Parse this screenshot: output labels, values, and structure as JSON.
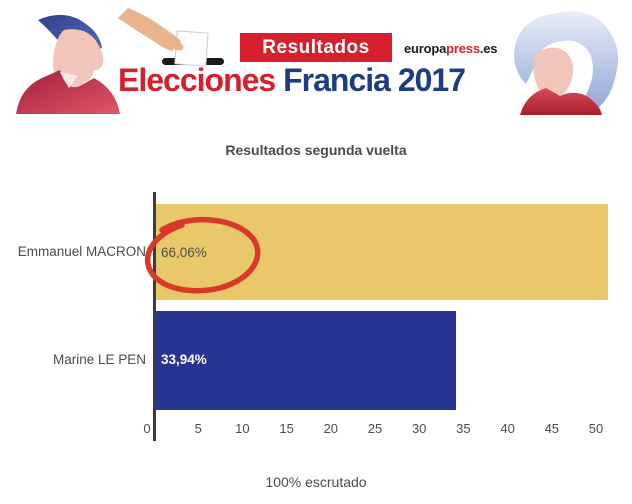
{
  "header": {
    "badge_label": "Resultados",
    "logo": {
      "part1": "europa",
      "part2": "press",
      "part3": ".es"
    },
    "title": {
      "part1": "Elecciones",
      "part2": "Francia 2017"
    },
    "colors": {
      "badge_red": "#d7202e",
      "title_red": "#d7202e",
      "title_navy": "#1d3d80"
    },
    "photos": {
      "left": "Emmanuel Macron portrait",
      "right": "Marine Le Pen portrait"
    }
  },
  "chart_data": {
    "type": "bar",
    "orientation": "horizontal",
    "title": "Resultados segunda vuelta",
    "categories": [
      "Emmanuel MACRON",
      "Marine LE PEN"
    ],
    "values": [
      66.06,
      33.94
    ],
    "value_labels": [
      "66,06%",
      "33,94%"
    ],
    "bar_colors": [
      "#e9c869",
      "#283593"
    ],
    "x_ticks": [
      0,
      5,
      10,
      15,
      20,
      25,
      30,
      35,
      40,
      45,
      50
    ],
    "xlim": [
      0,
      50
    ],
    "grid": false,
    "legend": "none",
    "annotation": {
      "type": "hand-drawn-circle",
      "target": "66,06%",
      "color": "#d8392b"
    },
    "footer": "100% escrutado"
  }
}
